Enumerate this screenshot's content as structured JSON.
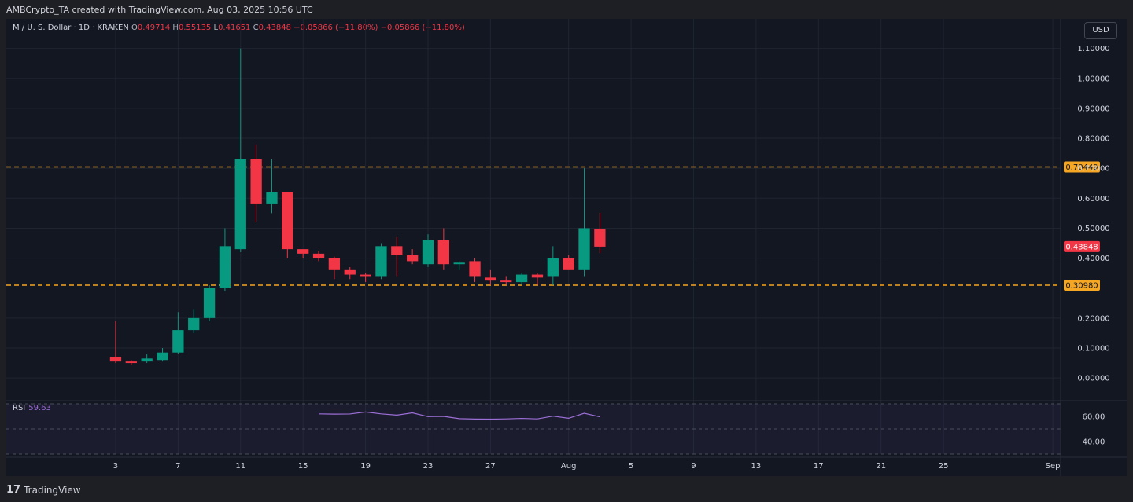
{
  "header": {
    "caption": "AMBCrypto_TA created with TradingView.com, Aug 03, 2025 10:56 UTC"
  },
  "symbol": {
    "name": "M / U. S. Dollar · 1D · KRAKEN",
    "o_label": "O",
    "o": "0.49714",
    "h_label": "H",
    "h": "0.55135",
    "l_label": "L",
    "l": "0.41651",
    "c_label": "C",
    "c": "0.43848",
    "change1": "−0.05866 (−11.80%)",
    "change2": "−0.05866 (−11.80%)"
  },
  "currency_button": "USD",
  "rsi": {
    "label": "RSI",
    "value": "59.63",
    "ticks": [
      "60.00",
      "40.00"
    ],
    "series": [
      62,
      61.8,
      61.9,
      63.5,
      62,
      61,
      62.8,
      59.8,
      60,
      58.2,
      57.9,
      57.8,
      58,
      58.4,
      58,
      60.2,
      58.5,
      62.5,
      59.63
    ]
  },
  "footer": {
    "brand": "TradingView",
    "logo": "tradingview-logo-icon"
  },
  "colors": {
    "up": "#089981",
    "down": "#f23645",
    "level": "#f5a623",
    "rsi": "#9c6fd6",
    "grid": "#1f2430",
    "text": "#d1d4dc"
  },
  "chart_data": {
    "type": "candlestick",
    "title": "M / U. S. Dollar · 1D · KRAKEN",
    "ylim": [
      -0.06,
      1.12
    ],
    "y_ticks": [
      "1.10000",
      "1.00000",
      "0.90000",
      "0.80000",
      "0.70000",
      "0.60000",
      "0.50000",
      "0.40000",
      "0.20000",
      "0.10000",
      "0.00000"
    ],
    "x_ticks": [
      {
        "label": "3",
        "day": 0
      },
      {
        "label": "7",
        "day": 4
      },
      {
        "label": "11",
        "day": 8
      },
      {
        "label": "15",
        "day": 12
      },
      {
        "label": "19",
        "day": 16
      },
      {
        "label": "23",
        "day": 20
      },
      {
        "label": "27",
        "day": 24
      },
      {
        "label": "Aug",
        "day": 29
      },
      {
        "label": "5",
        "day": 33
      },
      {
        "label": "9",
        "day": 37
      },
      {
        "label": "13",
        "day": 41
      },
      {
        "label": "17",
        "day": 45
      },
      {
        "label": "21",
        "day": 49
      },
      {
        "label": "25",
        "day": 53
      },
      {
        "label": "Sep",
        "day": 60
      }
    ],
    "x_range_days": [
      -7,
      60.5
    ],
    "levels": [
      {
        "label": "0.70449",
        "value": 0.70449
      },
      {
        "label": "0.30980",
        "value": 0.3098
      }
    ],
    "last_price": {
      "label": "0.43848",
      "value": 0.43848
    },
    "candles": [
      {
        "o": 0.07,
        "h": 0.19,
        "l": 0.05,
        "c": 0.055
      },
      {
        "o": 0.055,
        "h": 0.06,
        "l": 0.045,
        "c": 0.05
      },
      {
        "o": 0.055,
        "h": 0.08,
        "l": 0.05,
        "c": 0.065
      },
      {
        "o": 0.06,
        "h": 0.1,
        "l": 0.055,
        "c": 0.085
      },
      {
        "o": 0.085,
        "h": 0.22,
        "l": 0.08,
        "c": 0.16
      },
      {
        "o": 0.16,
        "h": 0.23,
        "l": 0.15,
        "c": 0.2
      },
      {
        "o": 0.2,
        "h": 0.31,
        "l": 0.19,
        "c": 0.3
      },
      {
        "o": 0.3,
        "h": 0.5,
        "l": 0.29,
        "c": 0.44
      },
      {
        "o": 0.43,
        "h": 1.1,
        "l": 0.42,
        "c": 0.73
      },
      {
        "o": 0.73,
        "h": 0.78,
        "l": 0.52,
        "c": 0.58
      },
      {
        "o": 0.58,
        "h": 0.73,
        "l": 0.55,
        "c": 0.62
      },
      {
        "o": 0.62,
        "h": 0.62,
        "l": 0.4,
        "c": 0.43
      },
      {
        "o": 0.43,
        "h": 0.43,
        "l": 0.4,
        "c": 0.415
      },
      {
        "o": 0.415,
        "h": 0.425,
        "l": 0.39,
        "c": 0.4
      },
      {
        "o": 0.4,
        "h": 0.405,
        "l": 0.33,
        "c": 0.36
      },
      {
        "o": 0.36,
        "h": 0.37,
        "l": 0.33,
        "c": 0.345
      },
      {
        "o": 0.345,
        "h": 0.35,
        "l": 0.32,
        "c": 0.34
      },
      {
        "o": 0.34,
        "h": 0.45,
        "l": 0.33,
        "c": 0.44
      },
      {
        "o": 0.44,
        "h": 0.47,
        "l": 0.34,
        "c": 0.41
      },
      {
        "o": 0.41,
        "h": 0.43,
        "l": 0.38,
        "c": 0.39
      },
      {
        "o": 0.38,
        "h": 0.48,
        "l": 0.37,
        "c": 0.46
      },
      {
        "o": 0.46,
        "h": 0.5,
        "l": 0.36,
        "c": 0.38
      },
      {
        "o": 0.38,
        "h": 0.39,
        "l": 0.36,
        "c": 0.385
      },
      {
        "o": 0.39,
        "h": 0.4,
        "l": 0.32,
        "c": 0.34
      },
      {
        "o": 0.335,
        "h": 0.36,
        "l": 0.31,
        "c": 0.325
      },
      {
        "o": 0.325,
        "h": 0.34,
        "l": 0.31,
        "c": 0.32
      },
      {
        "o": 0.32,
        "h": 0.35,
        "l": 0.31,
        "c": 0.345
      },
      {
        "o": 0.345,
        "h": 0.35,
        "l": 0.31,
        "c": 0.335
      },
      {
        "o": 0.34,
        "h": 0.44,
        "l": 0.31,
        "c": 0.4
      },
      {
        "o": 0.4,
        "h": 0.41,
        "l": 0.36,
        "c": 0.36
      },
      {
        "o": 0.36,
        "h": 0.7,
        "l": 0.34,
        "c": 0.5
      },
      {
        "o": 0.49714,
        "h": 0.55135,
        "l": 0.41651,
        "c": 0.43848
      }
    ]
  }
}
